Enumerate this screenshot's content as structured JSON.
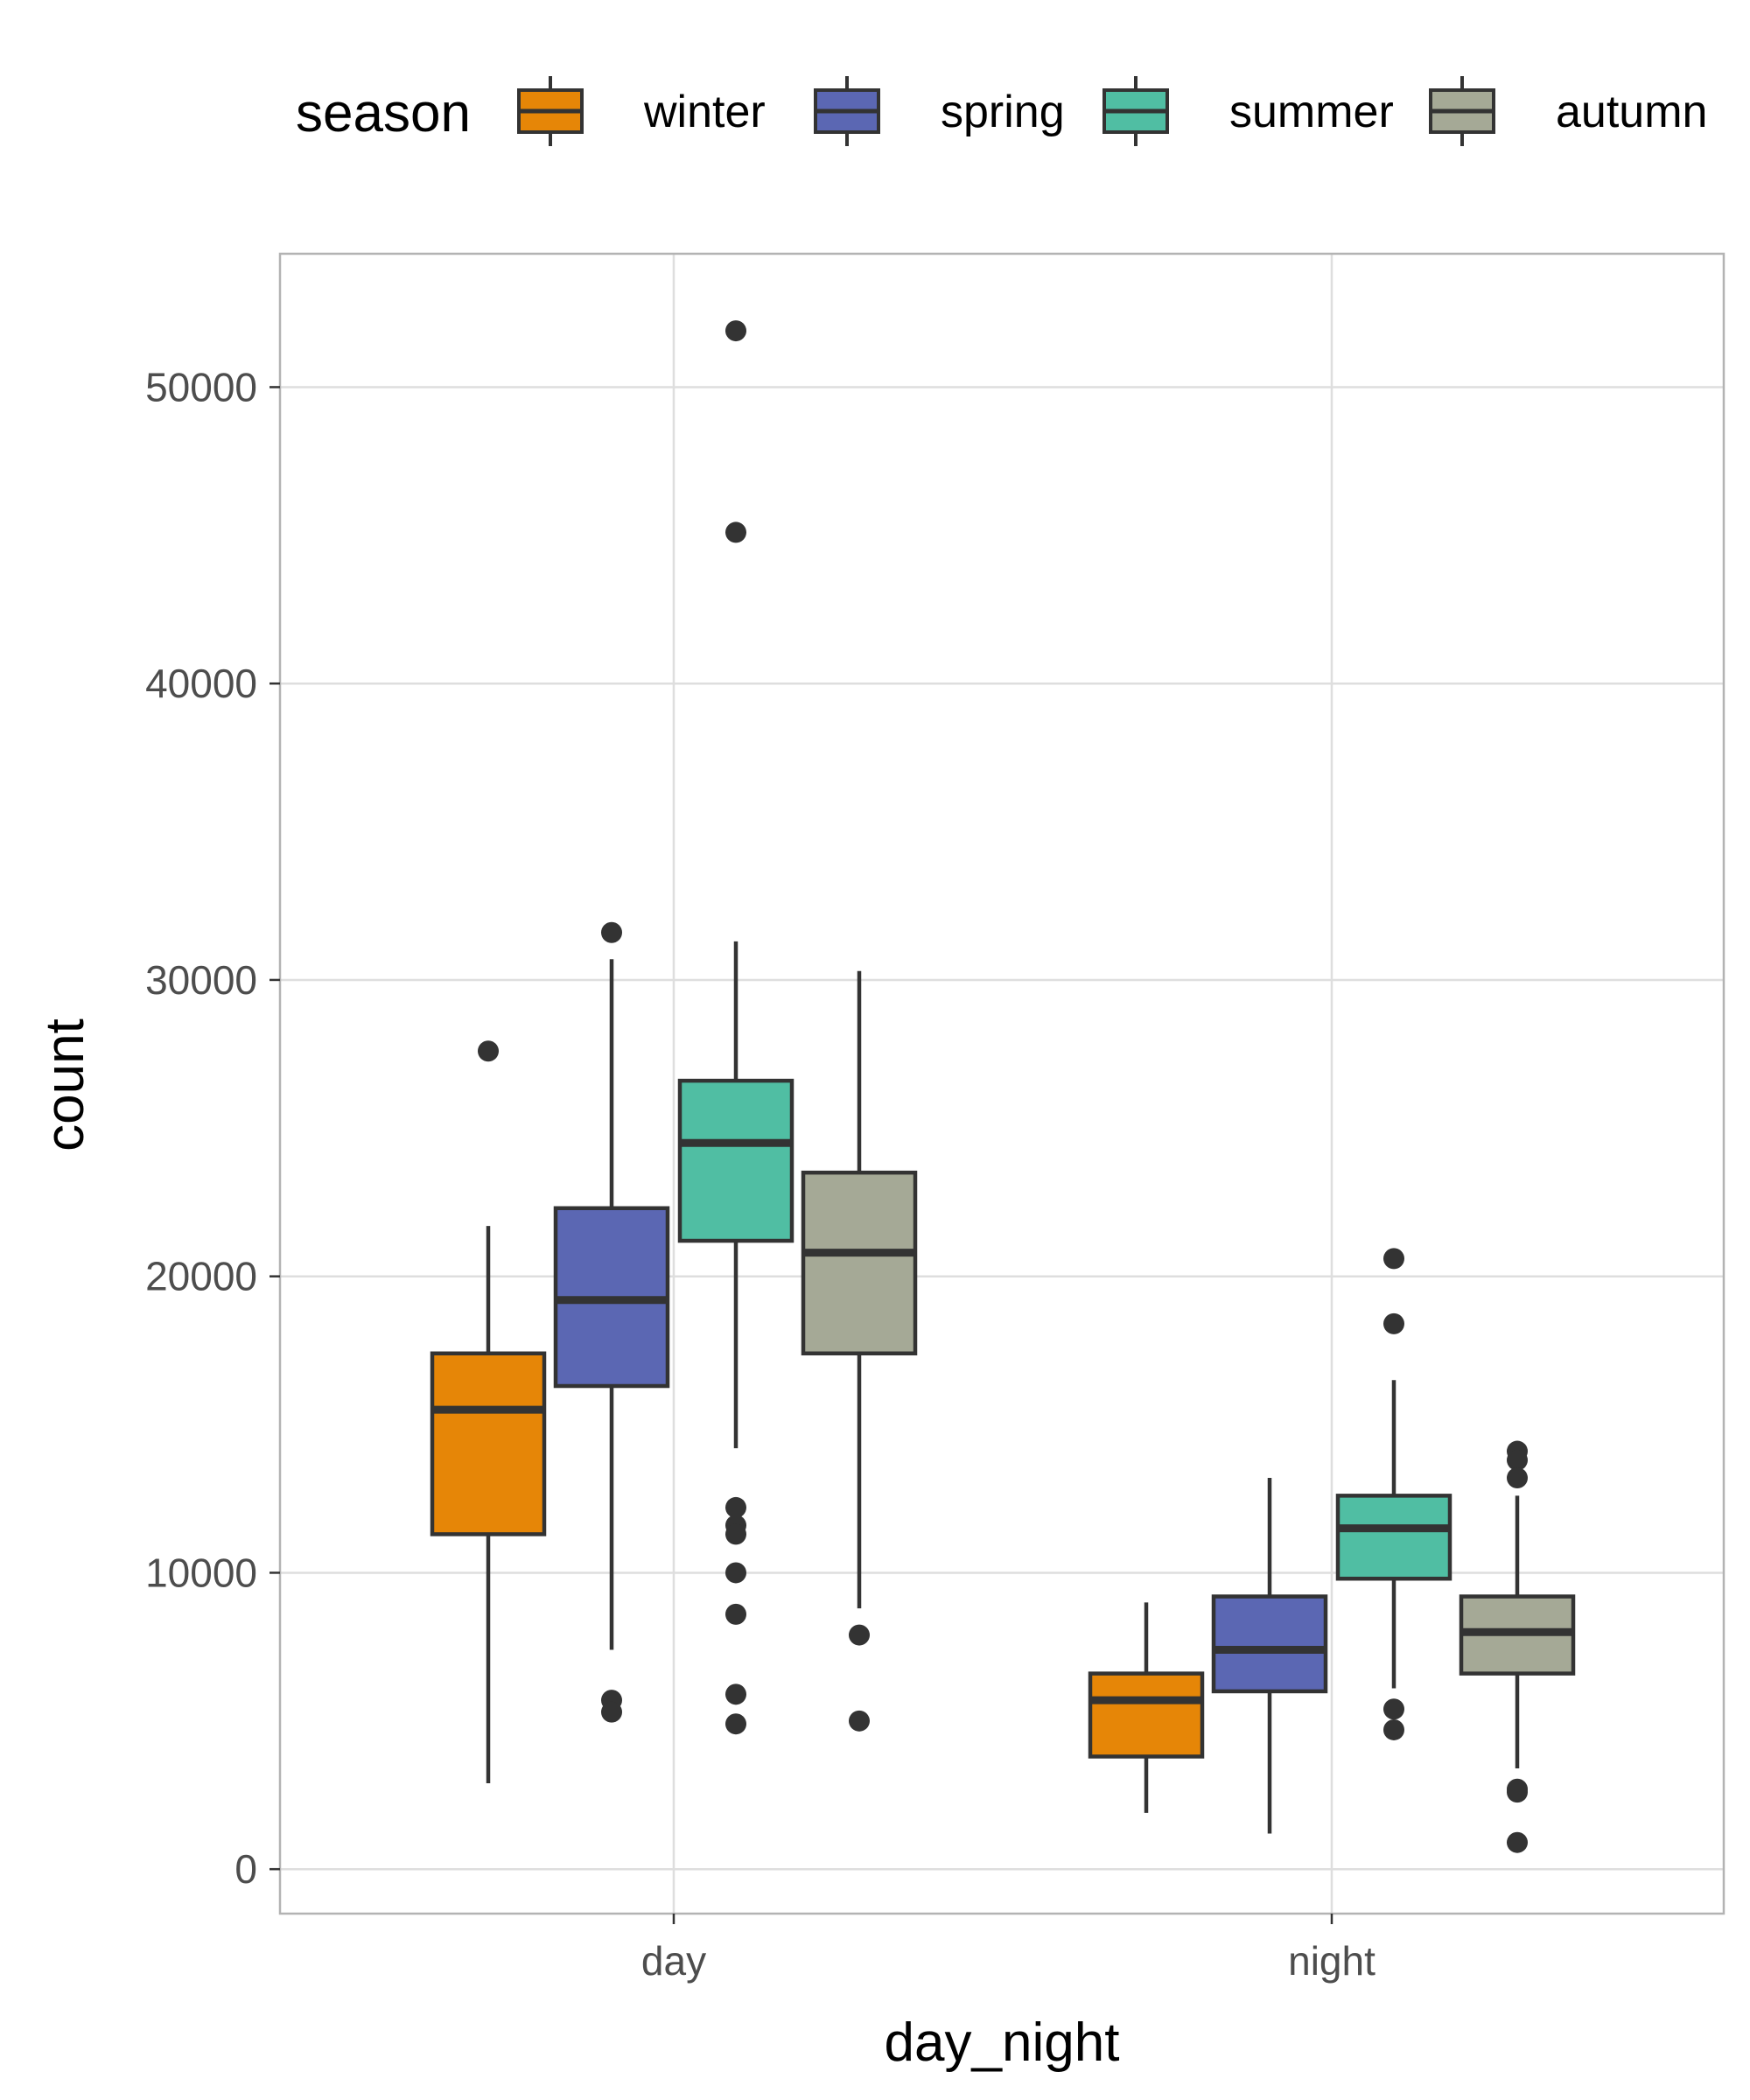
{
  "chart_data": {
    "type": "box",
    "xlabel": "day_night",
    "ylabel": "count",
    "categories": [
      "day",
      "night"
    ],
    "ylim": [
      -1500,
      54500
    ],
    "yticks": [
      0,
      10000,
      20000,
      30000,
      40000,
      50000
    ],
    "grid": true,
    "legend": {
      "title": "season",
      "position": "top"
    },
    "series": [
      {
        "name": "winter",
        "color": "#E68607",
        "boxes": [
          {
            "category": "day",
            "whisker_low": 2900,
            "q1": 11300,
            "median": 15500,
            "q3": 17400,
            "whisker_high": 21700,
            "outliers": [
              27600
            ]
          },
          {
            "category": "night",
            "whisker_low": 1900,
            "q1": 3800,
            "median": 5700,
            "q3": 6600,
            "whisker_high": 9000,
            "outliers": []
          }
        ]
      },
      {
        "name": "spring",
        "color": "#5B67B3",
        "boxes": [
          {
            "category": "day",
            "whisker_low": 7400,
            "q1": 16300,
            "median": 19200,
            "q3": 22300,
            "whisker_high": 30700,
            "outliers": [
              31600,
              5700,
              5300
            ]
          },
          {
            "category": "night",
            "whisker_low": 1200,
            "q1": 6000,
            "median": 7400,
            "q3": 9200,
            "whisker_high": 13200,
            "outliers": []
          }
        ]
      },
      {
        "name": "summer",
        "color": "#50BEA3",
        "boxes": [
          {
            "category": "day",
            "whisker_low": 14200,
            "q1": 21200,
            "median": 24500,
            "q3": 26600,
            "whisker_high": 31300,
            "outliers": [
              51900,
              45100,
              12200,
              11600,
              11300,
              10000,
              8600,
              5900,
              4900
            ]
          },
          {
            "category": "night",
            "whisker_low": 6100,
            "q1": 9800,
            "median": 11500,
            "q3": 12600,
            "whisker_high": 16500,
            "outliers": [
              20600,
              18400,
              5400,
              4700
            ]
          }
        ]
      },
      {
        "name": "autumn",
        "color": "#A5A996",
        "boxes": [
          {
            "category": "day",
            "whisker_low": 8800,
            "q1": 17400,
            "median": 20800,
            "q3": 23500,
            "whisker_high": 30300,
            "outliers": [
              7900,
              5000
            ]
          },
          {
            "category": "night",
            "whisker_low": 3400,
            "q1": 6600,
            "median": 8000,
            "q3": 9200,
            "whisker_high": 12600,
            "outliers": [
              14100,
              13800,
              13200,
              2700,
              2600,
              900
            ]
          }
        ]
      }
    ]
  }
}
